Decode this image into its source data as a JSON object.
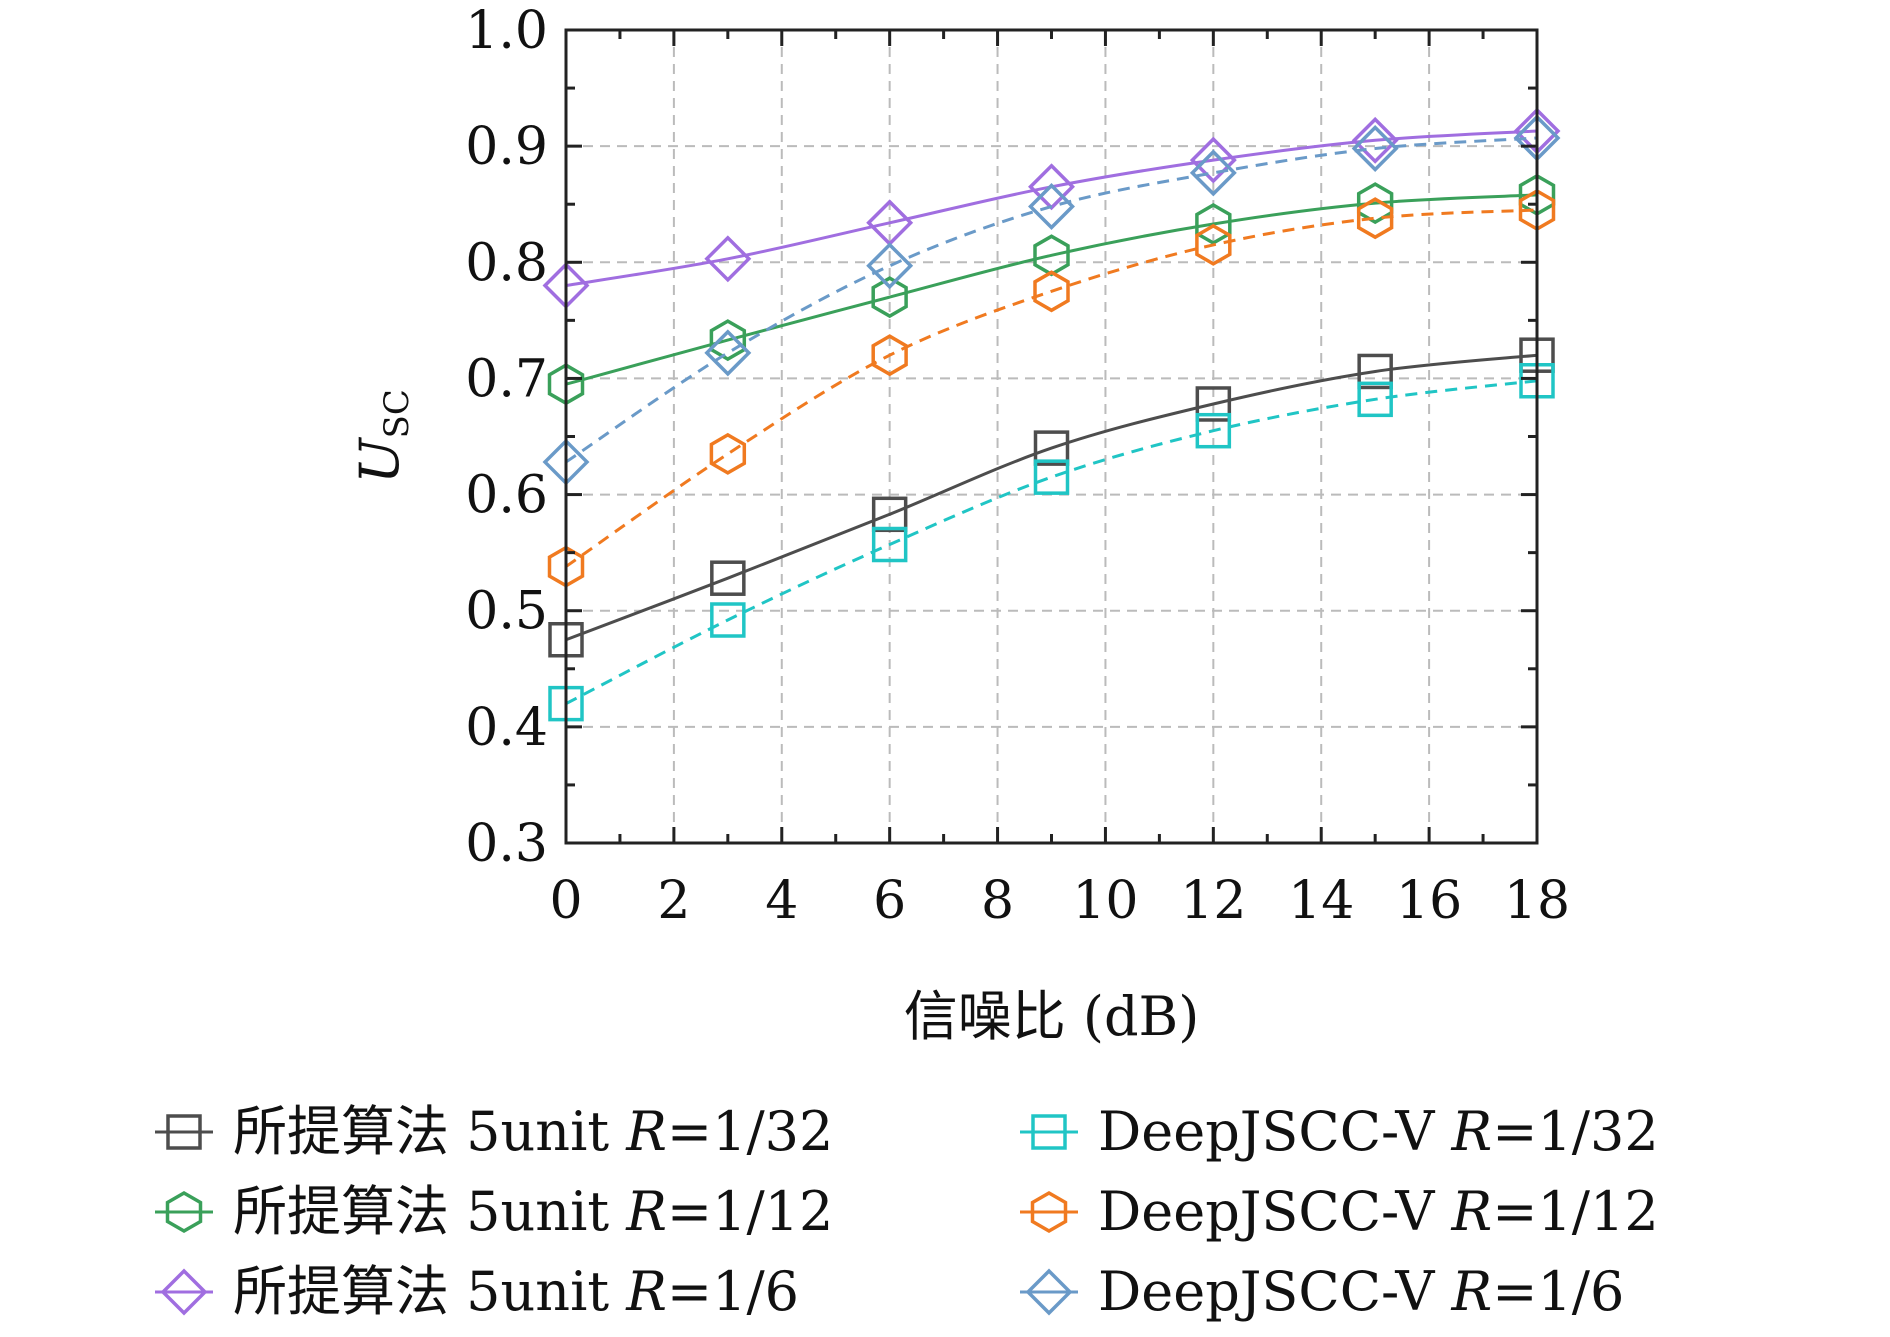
{
  "chart_data": {
    "type": "line",
    "xlabel": "信噪比 (dB)",
    "ylabel": "U",
    "ylabel_sub": "SC",
    "xlim": [
      0,
      18
    ],
    "ylim": [
      0.3,
      1.0
    ],
    "xticks": [
      "0",
      "2",
      "4",
      "6",
      "8",
      "10",
      "12",
      "14",
      "16",
      "18"
    ],
    "yticks": [
      "0.3",
      "0.4",
      "0.5",
      "0.6",
      "0.7",
      "0.8",
      "0.9",
      "1.0"
    ],
    "grid": true,
    "legend_position": "bottom",
    "x": [
      0,
      3,
      6,
      9,
      12,
      15,
      18
    ],
    "series": [
      {
        "name": "所提算法 5unit R=1/32",
        "label_prefix": "所提算法 5unit ",
        "label_var": "R",
        "label_val": "=1/32",
        "marker": "square",
        "dash": false,
        "color": "#4d4d4d",
        "values": [
          0.475,
          0.528,
          0.583,
          0.64,
          0.678,
          0.706,
          0.72
        ]
      },
      {
        "name": "所提算法 5unit R=1/12",
        "label_prefix": "所提算法 5unit ",
        "label_var": "R",
        "label_val": "=1/12",
        "marker": "hexagon",
        "dash": false,
        "color": "#3aa05a",
        "values": [
          0.695,
          0.733,
          0.77,
          0.806,
          0.833,
          0.851,
          0.858
        ]
      },
      {
        "name": "所提算法 5unit R=1/6",
        "label_prefix": "所提算法 5unit ",
        "label_var": "R",
        "label_val": "=1/6",
        "marker": "diamond",
        "dash": false,
        "color": "#a06ee0",
        "values": [
          0.78,
          0.803,
          0.834,
          0.865,
          0.888,
          0.905,
          0.913
        ]
      },
      {
        "name": "DeepJSCC-V R=1/32",
        "label_prefix": "DeepJSCC-V ",
        "label_var": "R",
        "label_val": "=1/32",
        "marker": "square",
        "dash": true,
        "color": "#20c5c5",
        "values": [
          0.42,
          0.492,
          0.557,
          0.615,
          0.655,
          0.682,
          0.698
        ]
      },
      {
        "name": "DeepJSCC-V R=1/12",
        "label_prefix": "DeepJSCC-V ",
        "label_var": "R",
        "label_val": "=1/12",
        "marker": "hexagon",
        "dash": true,
        "color": "#f07a20",
        "values": [
          0.538,
          0.635,
          0.72,
          0.775,
          0.815,
          0.838,
          0.845
        ]
      },
      {
        "name": "DeepJSCC-V R=1/6",
        "label_prefix": "DeepJSCC-V ",
        "label_var": "R",
        "label_val": "=1/6",
        "marker": "diamond",
        "dash": true,
        "color": "#6a9ac8",
        "values": [
          0.628,
          0.722,
          0.797,
          0.848,
          0.877,
          0.898,
          0.907
        ]
      }
    ]
  }
}
